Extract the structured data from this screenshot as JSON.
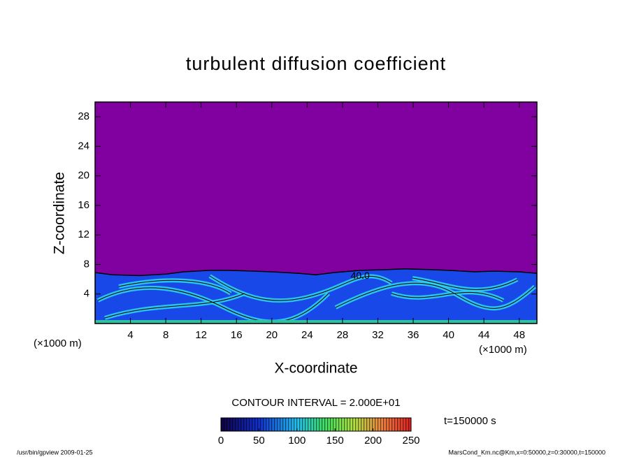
{
  "chart_data": {
    "type": "contour",
    "title": "turbulent diffusion coefficient",
    "xlabel": "X-coordinate",
    "ylabel": "Z-coordinate",
    "xunit": "(×1000 m)",
    "yunit": "(×1000 m)",
    "xlim": [
      0,
      50
    ],
    "xticks": [
      4,
      8,
      12,
      16,
      20,
      24,
      28,
      32,
      36,
      40,
      44,
      48
    ],
    "ylim": [
      0,
      30
    ],
    "yticks": [
      4,
      8,
      12,
      16,
      20,
      24,
      28
    ],
    "background_color": "#8000a0",
    "series": [
      {
        "color": "#1848e8",
        "x": [
          0,
          2,
          5,
          8,
          10,
          13,
          15,
          18,
          20,
          23,
          25,
          27,
          30,
          33,
          35,
          38,
          40,
          43,
          45,
          48,
          50
        ],
        "values": [
          6.9,
          6.6,
          6.5,
          6.7,
          7.0,
          7.2,
          7.2,
          7.1,
          7.0,
          6.8,
          6.6,
          6.9,
          7.2,
          7.3,
          7.4,
          7.3,
          7.2,
          7.0,
          7.1,
          7.0,
          6.8
        ]
      }
    ],
    "contour_label": "40.0",
    "contour_interval": "CONTOUR INTERVAL = 2.000E+01",
    "clim": [
      0,
      250
    ],
    "cbar_ticks": [
      0,
      50,
      100,
      150,
      200,
      250
    ],
    "time_label": "t=150000 s",
    "footer_left": "/usr/bin/gpview  2009-01-25",
    "footer_right": "MarsCond_Km.nc@Km,x=0:50000,z=0:30000,t=150000"
  }
}
